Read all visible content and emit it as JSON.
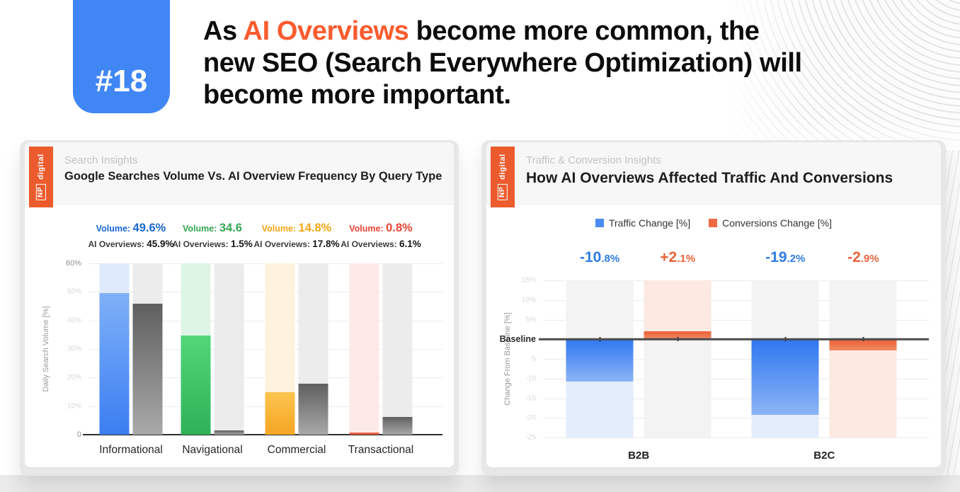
{
  "colors": {
    "accent": "#fb5b2e",
    "badge_bg": "#4186f5",
    "brand_orange": "#eb5b2d"
  },
  "badge": {
    "label": "#18"
  },
  "headline": {
    "line1_prefix": "As ",
    "line1_highlight": "AI Overviews",
    "line1_suffix": " become more common, the",
    "line2": "new SEO (Search Everywhere Optimization) will",
    "line3": "become more important."
  },
  "brand": {
    "np": "NP",
    "digital": "digital"
  },
  "left_card": {
    "eyebrow": "Search Insights",
    "title": "Google Searches Volume Vs. AI Overview Frequency By Query Type"
  },
  "right_card": {
    "eyebrow": "Traffic & Conversion Insights",
    "title": "How AI Overviews Affected Traffic And Conversions"
  },
  "legend": {
    "items": [
      {
        "label": "Traffic Change [%]",
        "color": "#4a8cf0"
      },
      {
        "label": "Conversions Change [%]",
        "color": "#ee6a45"
      }
    ]
  },
  "chart_data": [
    {
      "type": "bar",
      "title": "Google Searches Volume Vs. AI Overview Frequency By Query Type",
      "categories": [
        "Informational",
        "Navigational",
        "Commercial",
        "Transactional"
      ],
      "series": [
        {
          "name": "Volume",
          "values": [
            49.6,
            34.6,
            14.8,
            0.8
          ]
        },
        {
          "name": "AI Overviews",
          "values": [
            45.9,
            1.5,
            17.8,
            6.1
          ]
        }
      ],
      "value_labels": [
        {
          "volume": "49.6%",
          "ai": "45.9%"
        },
        {
          "volume": "34.6",
          "ai": "1.5%"
        },
        {
          "volume": "14.8%",
          "ai": "17.8%"
        },
        {
          "volume": "0.8%",
          "ai": "6.1%"
        }
      ],
      "volume_colors": [
        "#1967d2",
        "#34a853",
        "#f2a713",
        "#ea4335"
      ],
      "bar_gradients": [
        [
          "#7fb1f8",
          "#3b7ef2"
        ],
        [
          "#52d678",
          "#2eb258"
        ],
        [
          "#fcc44f",
          "#f5a623"
        ],
        [
          "#ef6a50",
          "#e25038"
        ]
      ],
      "track_tints": [
        "#dfeafc",
        "#def5e6",
        "#fdf3de",
        "#fdeae6"
      ],
      "ai_bar_gradient": [
        "#5f5f5f",
        "#a9a9a9"
      ],
      "ai_track_tint": "#ececec",
      "ylabel": "Daily Search Volume [%]",
      "ylim": [
        0,
        60
      ],
      "yticks": [
        {
          "label": "60%",
          "value": 60,
          "strong": true
        },
        {
          "label": "50%",
          "value": 50,
          "strong": false
        },
        {
          "label": "40%",
          "value": 40,
          "strong": false
        },
        {
          "label": "30%",
          "value": 30,
          "strong": false
        },
        {
          "label": "20%",
          "value": 20,
          "strong": false
        },
        {
          "label": "10%",
          "value": 10,
          "strong": false
        },
        {
          "label": "0",
          "value": 0,
          "strong": true
        }
      ],
      "grid": true,
      "legend_position": "none"
    },
    {
      "type": "bar",
      "title": "How AI Overviews Affected Traffic And Conversions",
      "categories": [
        "B2B",
        "B2C"
      ],
      "series": [
        {
          "name": "Traffic Change [%]",
          "values": [
            -10.8,
            -19.2
          ]
        },
        {
          "name": "Conversions Change [%]",
          "values": [
            2.1,
            -2.9
          ]
        }
      ],
      "bar_labels": [
        {
          "main": "-10",
          "rest": ".8%",
          "color": "#2e7be5"
        },
        {
          "main": "+2",
          "rest": ".1%",
          "color": "#e8643c"
        },
        {
          "main": "-19",
          "rest": ".2%",
          "color": "#2e7be5"
        },
        {
          "main": "-2",
          "rest": ".9%",
          "color": "#e8643c"
        }
      ],
      "series_styles": [
        {
          "gradient": [
            "#2f77f0",
            "#8cb4f6"
          ],
          "tint": "#e4edfc"
        },
        {
          "gradient": [
            "#ec5f35",
            "#f08a64"
          ],
          "tint": "#fce9e2"
        }
      ],
      "neutral_tint": "#f3f3f3",
      "ylabel": "Change From Baseline [%]",
      "ylim": [
        -25,
        15
      ],
      "yticks": [
        {
          "label": "15%",
          "value": 15,
          "strong": false
        },
        {
          "label": "10%",
          "value": 10,
          "strong": false
        },
        {
          "label": "5%",
          "value": 5,
          "strong": false
        },
        {
          "label": "Baseline",
          "value": 0,
          "strong": true
        },
        {
          "label": "-5",
          "value": -5,
          "strong": false
        },
        {
          "label": "-10",
          "value": -10,
          "strong": false
        },
        {
          "label": "-15",
          "value": -15,
          "strong": false
        },
        {
          "label": "-20",
          "value": -20,
          "strong": false
        },
        {
          "label": "-25",
          "value": -25,
          "strong": false
        }
      ],
      "grid": true,
      "legend_position": "top"
    }
  ]
}
